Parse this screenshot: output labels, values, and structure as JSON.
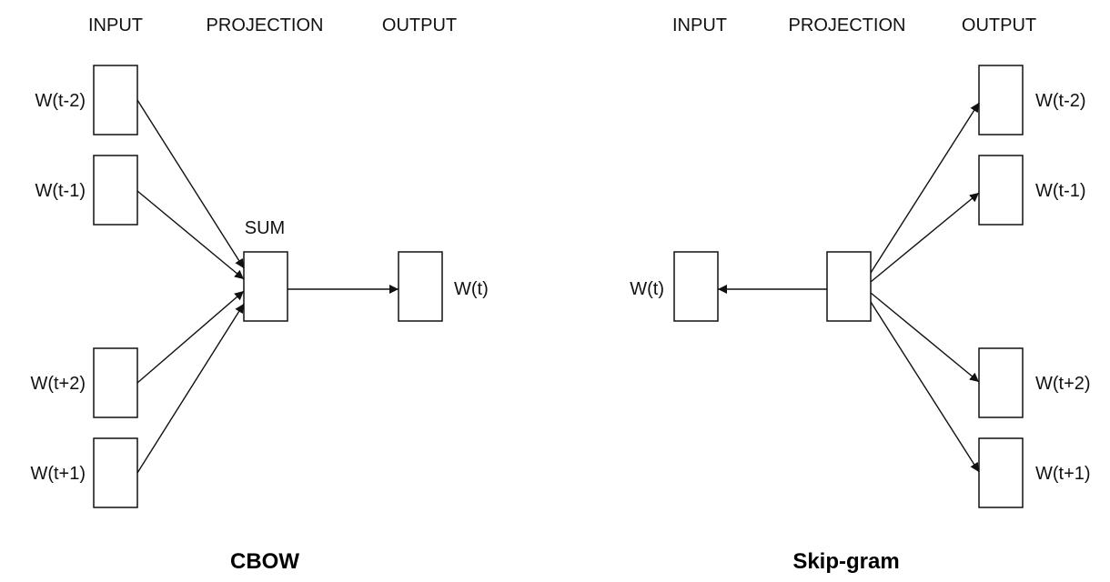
{
  "cbow": {
    "title": "CBOW",
    "headers": {
      "input": "INPUT",
      "projection": "PROJECTION",
      "output": "OUTPUT"
    },
    "sum_label": "SUM",
    "inputs": [
      "W(t-2)",
      "W(t-1)",
      "W(t+2)",
      "W(t+1)"
    ],
    "output": "W(t)"
  },
  "skipgram": {
    "title": "Skip-gram",
    "headers": {
      "input": "INPUT",
      "projection": "PROJECTION",
      "output": "OUTPUT"
    },
    "input": "W(t)",
    "outputs": [
      "W(t-2)",
      "W(t-1)",
      "W(t+2)",
      "W(t+1)"
    ]
  },
  "colors": {
    "stroke": "#111111",
    "background": "#ffffff"
  }
}
